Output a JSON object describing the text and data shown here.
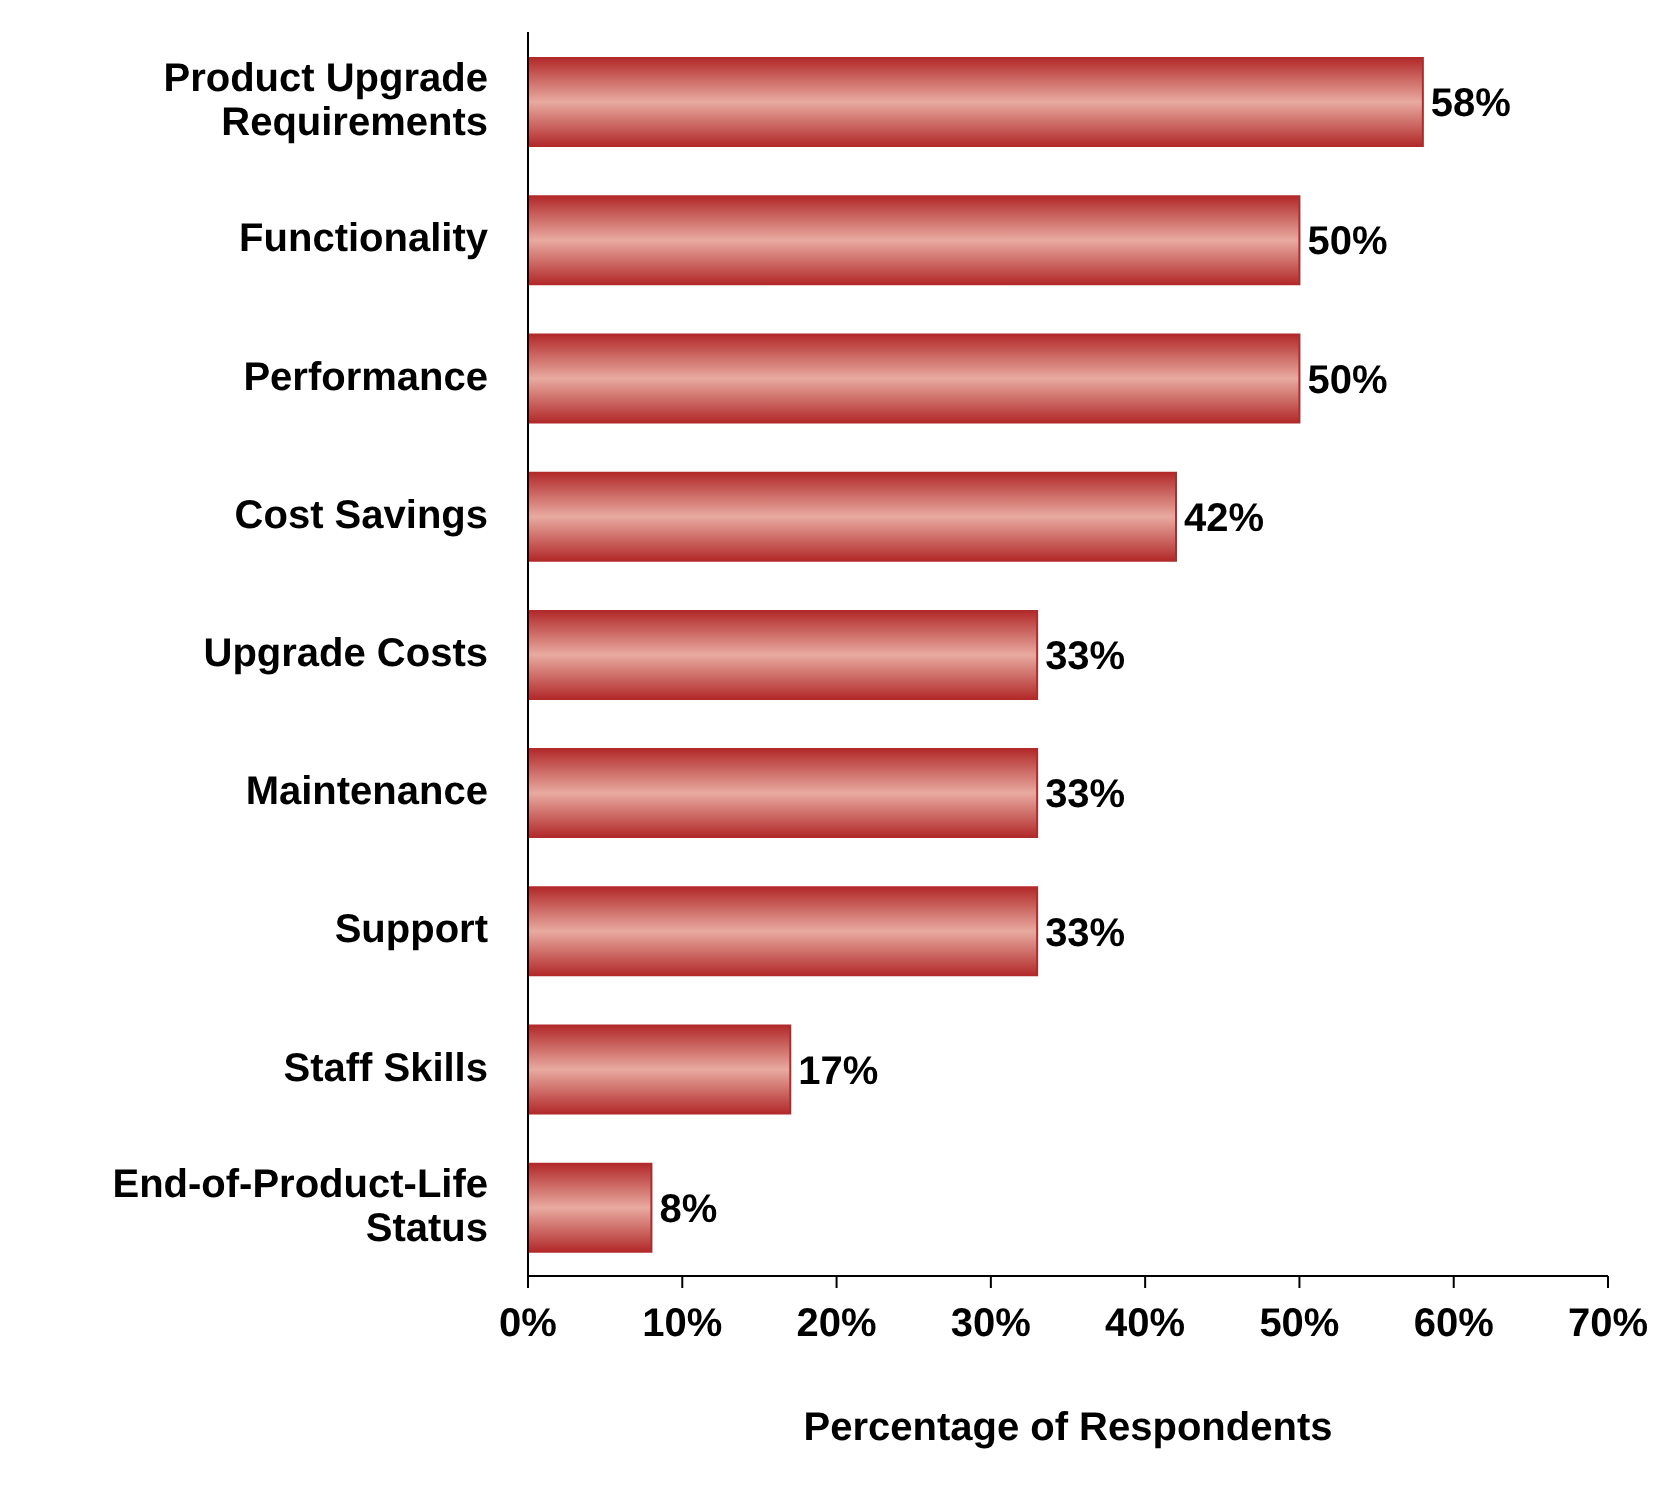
{
  "chart_data": {
    "type": "bar",
    "orientation": "horizontal",
    "categories": [
      "Product Upgrade Requirements",
      "Functionality",
      "Performance",
      "Cost Savings",
      "Upgrade Costs",
      "Maintenance",
      "Support",
      "Staff Skills",
      "End-of-Product-Life Status"
    ],
    "values": [
      58,
      50,
      50,
      42,
      33,
      33,
      33,
      17,
      8
    ],
    "value_labels": [
      "58%",
      "50%",
      "50%",
      "42%",
      "33%",
      "33%",
      "33%",
      "17%",
      "8%"
    ],
    "color": "#b22a2a",
    "xlabel": "Percentage of Respondents",
    "xlim": [
      0,
      70
    ],
    "xticks": [
      {
        "value": 0,
        "label": "0%"
      },
      {
        "value": 10,
        "label": "10%"
      },
      {
        "value": 20,
        "label": "20%"
      },
      {
        "value": 30,
        "label": "30%"
      },
      {
        "value": 40,
        "label": "40%"
      },
      {
        "value": 50,
        "label": "50%"
      },
      {
        "value": 60,
        "label": "60%"
      },
      {
        "value": 70,
        "label": "70%"
      }
    ],
    "grid": false,
    "legend": false
  }
}
